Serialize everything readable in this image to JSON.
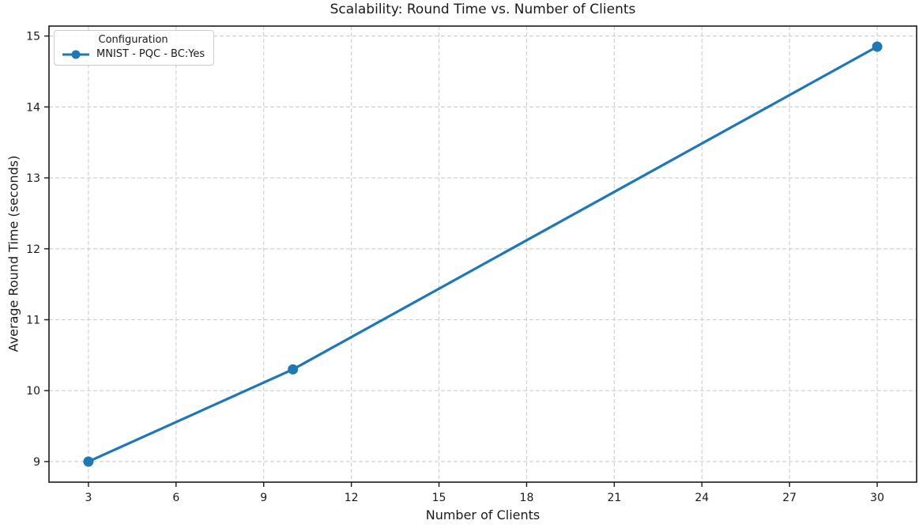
{
  "colors": {
    "line": "#1f77b4",
    "grid": "#cccccc",
    "spine": "#1a1a1a",
    "text": "#1a1a1a",
    "legend_border": "#cccccc",
    "background": "#ffffff"
  },
  "chart_data": {
    "type": "line",
    "title": "Scalability: Round Time vs. Number of Clients",
    "xlabel": "Number of Clients",
    "ylabel": "Average Round Time (seconds)",
    "legend_title": "Configuration",
    "legend_position": "upper-left",
    "grid": true,
    "grid_style": "dashed",
    "series": [
      {
        "name": "MNIST - PQC - BC:Yes",
        "color": "#1f77b4",
        "marker": "circle",
        "x": [
          3,
          10,
          30
        ],
        "y": [
          9.0,
          10.3,
          14.85
        ]
      }
    ],
    "xticks": [
      3,
      6,
      9,
      12,
      15,
      18,
      21,
      24,
      27,
      30
    ],
    "yticks": [
      9,
      10,
      11,
      12,
      13,
      14,
      15
    ],
    "xlim": [
      1.65,
      31.35
    ],
    "ylim": [
      8.71,
      15.14
    ]
  }
}
